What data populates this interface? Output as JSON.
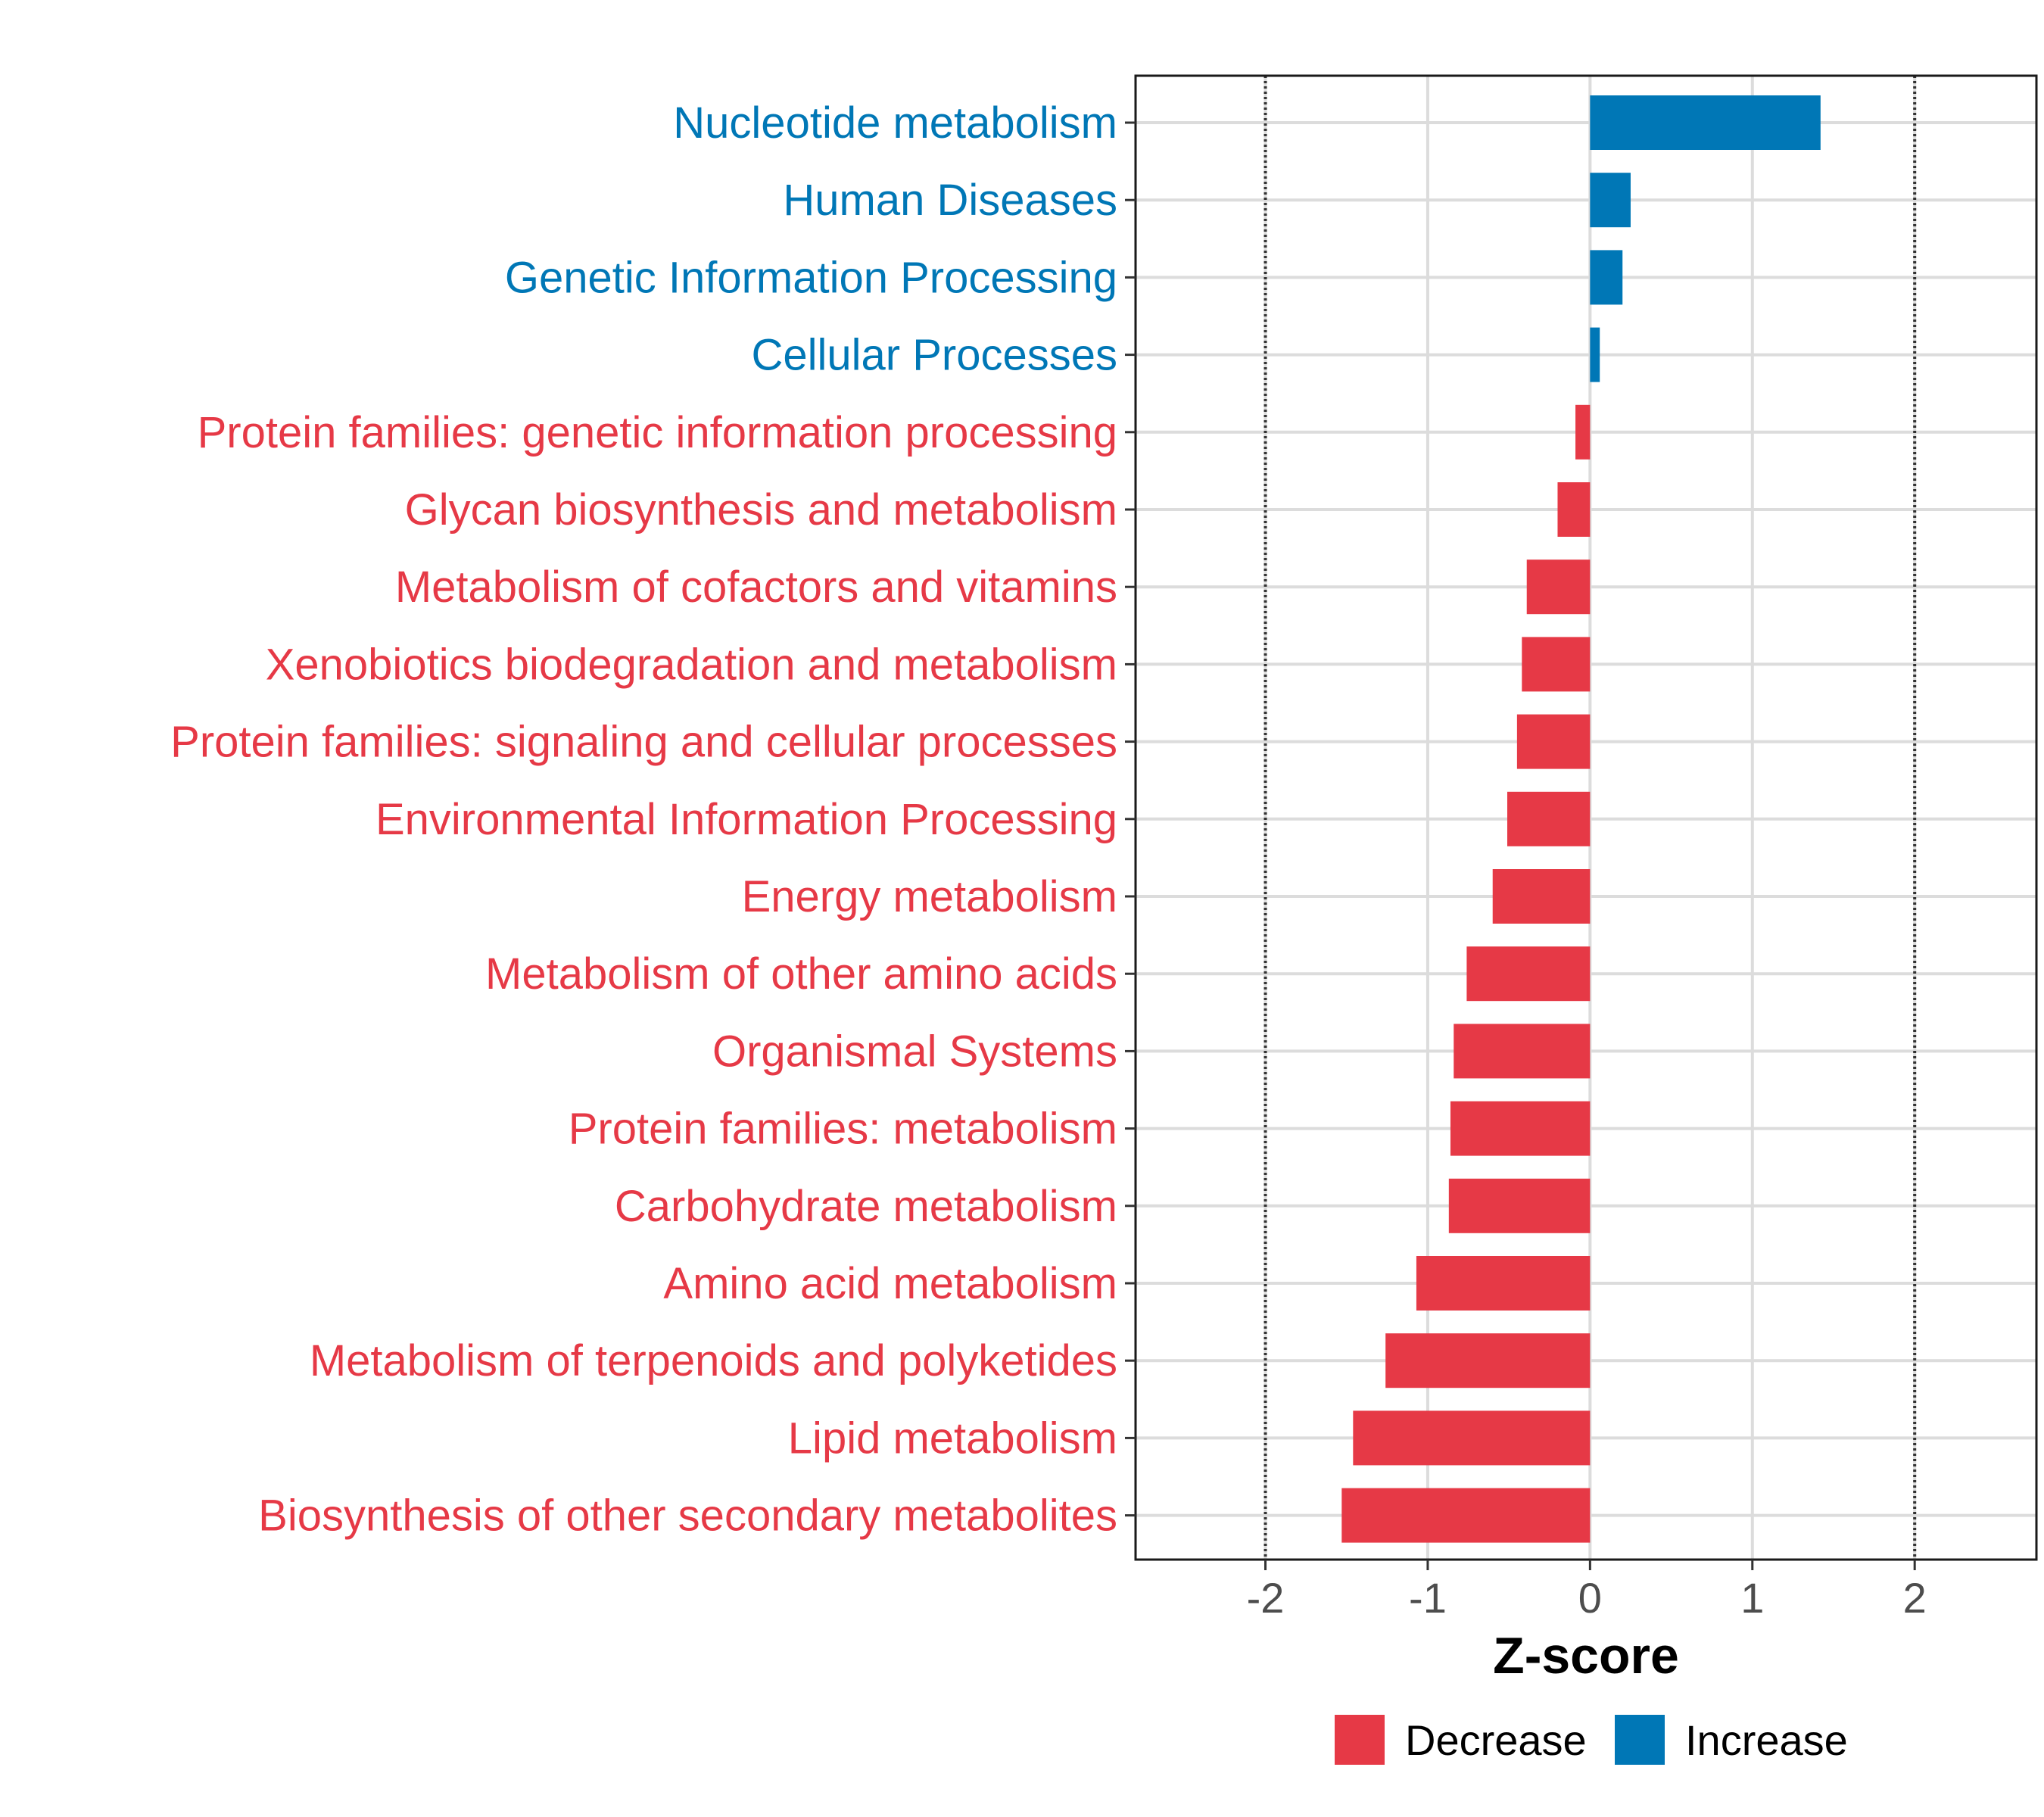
{
  "chart_data": {
    "type": "bar",
    "orientation": "horizontal",
    "title": "",
    "xlabel": "Z-score",
    "ylabel": "",
    "xlim": [
      -2.8,
      2.75
    ],
    "xticks": [
      -2,
      -1,
      0,
      1,
      2
    ],
    "xtick_labels": [
      "-2",
      "-1",
      "0",
      "1",
      "2"
    ],
    "reference_lines": [
      -2,
      2
    ],
    "grid": true,
    "legend_position": "bottom",
    "legend": [
      {
        "label": "Decrease",
        "color": "#E63946"
      },
      {
        "label": "Increase",
        "color": "#0077B6"
      }
    ],
    "colors": {
      "Decrease": "#E63946",
      "Increase": "#0077B6"
    },
    "categories": [
      "Nucleotide metabolism",
      "Human Diseases",
      "Genetic Information Processing",
      "Cellular Processes",
      "Protein families: genetic information processing",
      "Glycan biosynthesis and metabolism",
      "Metabolism of cofactors and vitamins",
      "Xenobiotics biodegradation and metabolism",
      "Protein families: signaling and cellular processes",
      "Environmental Information Processing",
      "Energy metabolism",
      "Metabolism of other amino acids",
      "Organismal Systems",
      "Protein families: metabolism",
      "Carbohydrate metabolism",
      "Amino acid metabolism",
      "Metabolism of terpenoids and polyketides",
      "Lipid metabolism",
      "Biosynthesis of other secondary metabolites"
    ],
    "values": [
      1.42,
      0.25,
      0.2,
      0.06,
      -0.09,
      -0.2,
      -0.39,
      -0.42,
      -0.45,
      -0.51,
      -0.6,
      -0.76,
      -0.84,
      -0.86,
      -0.87,
      -1.07,
      -1.26,
      -1.46,
      -1.53
    ],
    "groups": [
      "Increase",
      "Increase",
      "Increase",
      "Increase",
      "Decrease",
      "Decrease",
      "Decrease",
      "Decrease",
      "Decrease",
      "Decrease",
      "Decrease",
      "Decrease",
      "Decrease",
      "Decrease",
      "Decrease",
      "Decrease",
      "Decrease",
      "Decrease",
      "Decrease"
    ]
  }
}
